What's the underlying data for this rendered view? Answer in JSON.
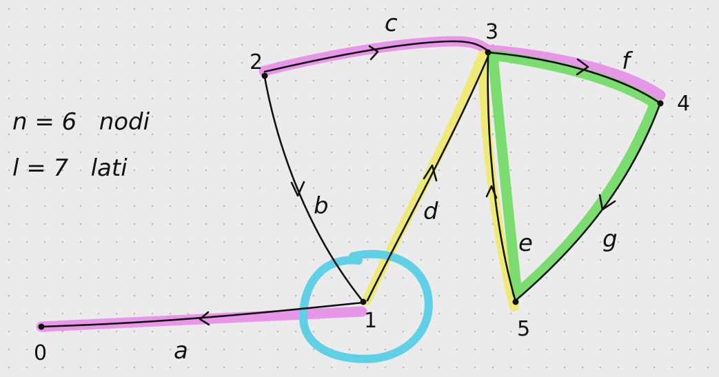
{
  "colors": {
    "background": "#ebebeb",
    "grid_dot": "#b9b9b9",
    "ink": "#111111",
    "magenta_highlight": "#e88ee8",
    "yellow_highlight": "#f0ea6a",
    "green_highlight": "#6fdc62",
    "cyan_circle": "#5fd0e6"
  },
  "info": {
    "nodes_line": "n = 6   nodi",
    "edges_line": "l = 7   lati"
  },
  "nodes": [
    {
      "id": "0",
      "label": "0"
    },
    {
      "id": "1",
      "label": "1"
    },
    {
      "id": "2",
      "label": "2"
    },
    {
      "id": "3",
      "label": "3"
    },
    {
      "id": "4",
      "label": "4"
    },
    {
      "id": "5",
      "label": "5"
    }
  ],
  "edges": [
    {
      "id": "a",
      "label": "a",
      "from": "1",
      "to": "0"
    },
    {
      "id": "b",
      "label": "b",
      "from": "2",
      "to": "1"
    },
    {
      "id": "c",
      "label": "c",
      "from": "2",
      "to": "3"
    },
    {
      "id": "d",
      "label": "d",
      "from": "1",
      "to": "3"
    },
    {
      "id": "e",
      "label": "e",
      "from": "5",
      "to": "3"
    },
    {
      "id": "f",
      "label": "f",
      "from": "3",
      "to": "4"
    },
    {
      "id": "g",
      "label": "g",
      "from": "4",
      "to": "5"
    }
  ],
  "highlights": [
    {
      "name": "magenta-path",
      "color": "magenta",
      "edges": [
        "a",
        "c",
        "f"
      ]
    },
    {
      "name": "yellow-path",
      "color": "yellow",
      "edges": [
        "d",
        "e"
      ]
    },
    {
      "name": "green-cycle",
      "color": "green",
      "edges": [
        "e",
        "f",
        "g"
      ]
    },
    {
      "name": "cyan-circle",
      "color": "cyan",
      "around_node": "1"
    }
  ]
}
